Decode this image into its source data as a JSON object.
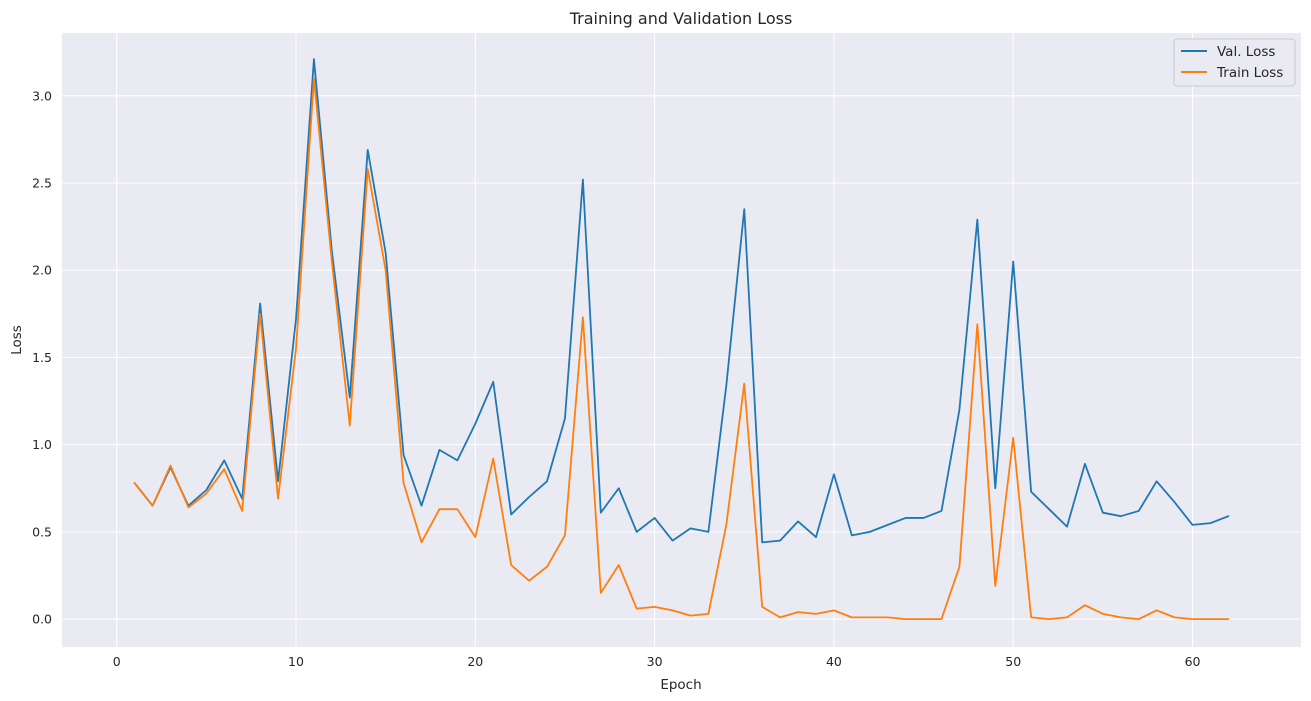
{
  "chart_data": {
    "type": "line",
    "title": "Training and Validation Loss",
    "xlabel": "Epoch",
    "ylabel": "Loss",
    "xlim": [
      -3.05,
      66.05
    ],
    "ylim": [
      -0.16,
      3.36
    ],
    "xticks": [
      0,
      10,
      20,
      30,
      40,
      50,
      60
    ],
    "xtick_labels": [
      "0",
      "10",
      "20",
      "30",
      "40",
      "50",
      "60"
    ],
    "yticks": [
      0.0,
      0.5,
      1.0,
      1.5,
      2.0,
      2.5,
      3.0
    ],
    "ytick_labels": [
      "0.0",
      "0.5",
      "1.0",
      "1.5",
      "2.0",
      "2.5",
      "3.0"
    ],
    "grid": true,
    "legend_position": "top-right",
    "colors": {
      "plot_background": "#eaeaf2",
      "grid": "#ffffff"
    },
    "x": [
      1,
      2,
      3,
      4,
      5,
      6,
      7,
      8,
      9,
      10,
      11,
      12,
      13,
      14,
      15,
      16,
      17,
      18,
      19,
      20,
      21,
      22,
      23,
      24,
      25,
      26,
      27,
      28,
      29,
      30,
      31,
      32,
      33,
      34,
      35,
      36,
      37,
      38,
      39,
      40,
      41,
      42,
      43,
      44,
      45,
      46,
      47,
      48,
      49,
      50,
      51,
      52,
      53,
      54,
      55,
      56,
      57,
      58,
      59,
      60,
      61,
      62
    ],
    "series": [
      {
        "name": "Val. Loss",
        "color": "#1f77b4",
        "values": [
          0.78,
          0.65,
          0.87,
          0.65,
          0.74,
          0.91,
          0.69,
          1.81,
          0.79,
          1.72,
          3.21,
          2.11,
          1.27,
          2.69,
          2.1,
          0.94,
          0.65,
          0.97,
          0.91,
          1.12,
          1.36,
          0.6,
          0.7,
          0.79,
          1.15,
          2.52,
          0.61,
          0.75,
          0.5,
          0.58,
          0.45,
          0.52,
          0.5,
          1.34,
          2.35,
          0.44,
          0.45,
          0.56,
          0.47,
          0.83,
          0.48,
          0.5,
          0.54,
          0.58,
          0.58,
          0.62,
          1.2,
          2.29,
          0.75,
          2.05,
          0.73,
          0.63,
          0.53,
          0.89,
          0.61,
          0.59,
          0.62,
          0.79,
          0.67,
          0.54,
          0.55,
          0.59
        ]
      },
      {
        "name": "Train Loss",
        "color": "#ff7f0e",
        "values": [
          0.78,
          0.65,
          0.88,
          0.64,
          0.72,
          0.86,
          0.62,
          1.75,
          0.69,
          1.55,
          3.1,
          2.05,
          1.11,
          2.58,
          2.0,
          0.78,
          0.44,
          0.63,
          0.63,
          0.47,
          0.92,
          0.31,
          0.22,
          0.3,
          0.48,
          1.73,
          0.15,
          0.31,
          0.06,
          0.07,
          0.05,
          0.02,
          0.03,
          0.54,
          1.35,
          0.07,
          0.01,
          0.04,
          0.03,
          0.05,
          0.01,
          0.01,
          0.01,
          0.0,
          0.0,
          0.0,
          0.3,
          1.69,
          0.19,
          1.04,
          0.01,
          0.0,
          0.01,
          0.08,
          0.03,
          0.01,
          0.0,
          0.05,
          0.01,
          0.0,
          0.0,
          0.0
        ]
      }
    ]
  }
}
